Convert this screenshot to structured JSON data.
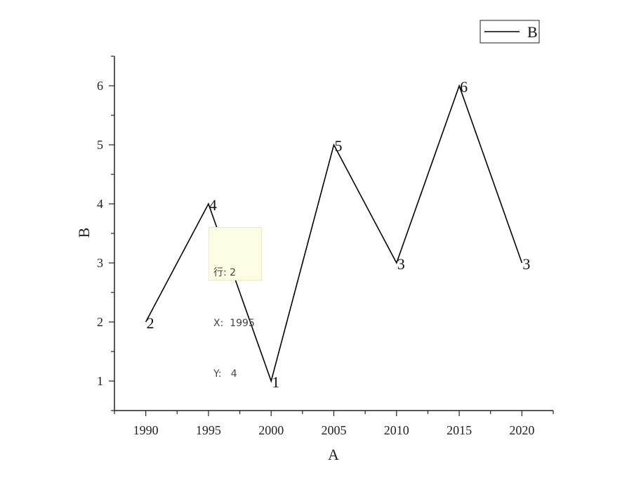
{
  "chart_data": {
    "type": "line",
    "xlabel": "A",
    "ylabel": "B",
    "x": [
      1990,
      1995,
      2000,
      2005,
      2010,
      2015,
      2020
    ],
    "series": [
      {
        "name": "B",
        "values": [
          2,
          4,
          1,
          5,
          3,
          6,
          3
        ],
        "color": "#000000"
      }
    ],
    "data_labels": [
      "2",
      "4",
      "1",
      "5",
      "3",
      "6",
      "3"
    ],
    "xticks": [
      "1990",
      "1995",
      "2000",
      "2005",
      "2010",
      "2015",
      "2020"
    ],
    "yticks": [
      "1",
      "2",
      "3",
      "4",
      "5",
      "6"
    ],
    "xlim": [
      1987.5,
      2022.5
    ],
    "ylim": [
      0.5,
      6.5
    ],
    "legend": {
      "entries": [
        "B"
      ],
      "placement": "top-right"
    },
    "grid": false
  },
  "tooltip": {
    "row_label": "行:",
    "row_value": "2",
    "x_label": "X:",
    "x_value": "1995",
    "y_label": "Y:",
    "y_value": "4"
  }
}
